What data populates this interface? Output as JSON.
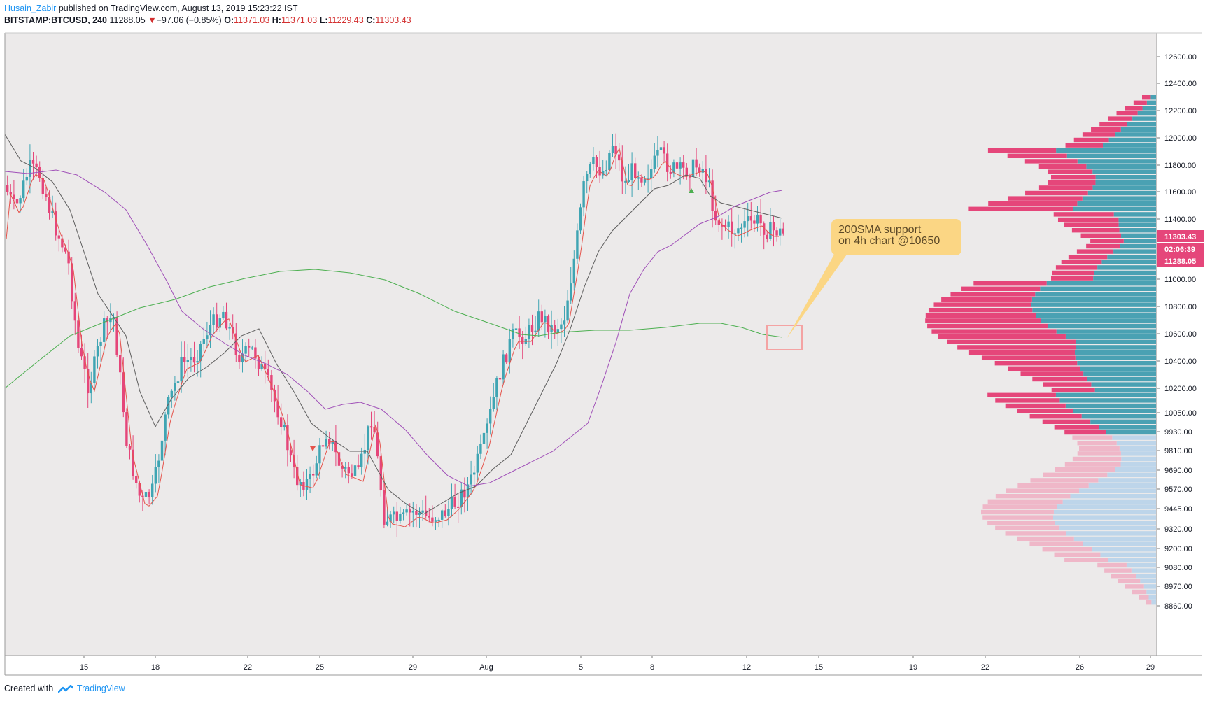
{
  "header": {
    "author": "Husain_Zabir",
    "published": "published on TradingView.com, August 13, 2019 15:23:22 IST",
    "symbol": "BITSTAMP:BTCUSD, 240",
    "last": "11288.05",
    "change_arrow": "▼",
    "change": "−97.06 (−0.85%)",
    "o_label": "O:",
    "o_value": "11371.03",
    "h_label": "H:",
    "h_value": "11371.03",
    "l_label": "L:",
    "l_value": "11229.43",
    "c_label": "C:",
    "c_value": "11303.43"
  },
  "footer": {
    "created_with": "Created with",
    "brand": "TradingView"
  },
  "annotation": {
    "line1": "200SMA support",
    "line2": "on 4h chart @10650"
  },
  "colors": {
    "up": "#3fa5b3",
    "down": "#e5467a",
    "sma_fast": "#e5534b",
    "sma_mid": "#5f5f5f",
    "sma_slow": "#a050b8",
    "sma200": "#4caf50",
    "bg": "#eceaea",
    "vp_up": "#4aa1b3",
    "vp_down": "#e5467a",
    "vp_up_light": "#bdd5ea",
    "vp_down_light": "#efb7c8",
    "callout": "#fbd684",
    "box": "#f4a3a3"
  },
  "chart_data": {
    "type": "candlestick",
    "symbol": "BITSTAMP:BTCUSD",
    "timeframe": "240",
    "x_ticks": [
      "15",
      "18",
      "22",
      "25",
      "29",
      "Aug",
      "5",
      "8",
      "12",
      "15",
      "19",
      "22",
      "26",
      "29"
    ],
    "y_ticks": [
      "12600.00",
      "12400.00",
      "12200.00",
      "12000.00",
      "11800.00",
      "11600.00",
      "11400.00",
      "11000.00",
      "10800.00",
      "10600.00",
      "10400.00",
      "10200.00",
      "10050.00",
      "9930.00",
      "9810.00",
      "9690.00",
      "9570.00",
      "9445.00",
      "9320.00",
      "9200.00",
      "9080.00",
      "8970.00",
      "8860.00"
    ],
    "price_badges": [
      {
        "label": "11303.43",
        "color": "#e5467a"
      },
      {
        "label": "02:06:39",
        "color": "#e5467a"
      },
      {
        "label": "11288.05",
        "color": "#e5467a"
      }
    ],
    "markers": [
      {
        "type": "down-arrow",
        "date": "24"
      },
      {
        "type": "up-arrow",
        "date": "9"
      }
    ],
    "indicators": [
      "SMA fast",
      "SMA mid",
      "SMA slow",
      "200 SMA"
    ],
    "volume_profile": true,
    "highlight_box": {
      "price_low": 10570,
      "price_high": 10720
    }
  }
}
